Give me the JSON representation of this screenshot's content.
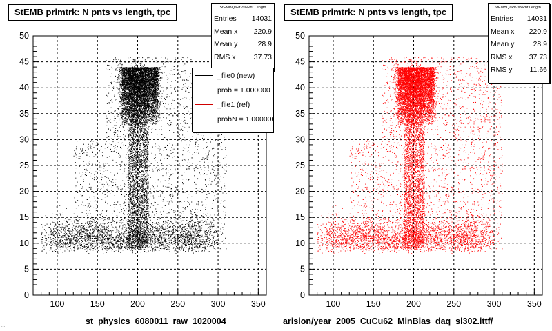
{
  "chart_data": [
    {
      "type": "scatter",
      "title": "StEMB primtrk: N pnts vs length, tpc",
      "xlabel": "st_physics_6080011_raw_1020004",
      "ylabel": "",
      "xlim": [
        70,
        360
      ],
      "ylim": [
        0,
        50
      ],
      "x_ticks": [
        100,
        150,
        200,
        250,
        300,
        350
      ],
      "y_ticks": [
        0,
        5,
        10,
        15,
        20,
        25,
        30,
        35,
        40,
        45,
        50
      ],
      "grid": true,
      "marker_color": "#000000",
      "stats": {
        "name": "StEMBQaPrVsNPnt.Length",
        "rows": [
          {
            "label": "Entries",
            "value": "14031"
          },
          {
            "label": "Mean x",
            "value": "220.9"
          },
          {
            "label": "Mean y",
            "value": "28.9"
          },
          {
            "label": "RMS x",
            "value": "37.73"
          }
        ]
      },
      "legend": {
        "placement": "top-right",
        "entries": [
          {
            "label": "_file0 (new)",
            "color": "#000000"
          },
          {
            "label": "prob = 1.000000",
            "color": "#000000"
          },
          {
            "label": "_file1 (ref)",
            "color": "#d00000"
          },
          {
            "label": "probN = 1.000000",
            "color": "#d00000"
          }
        ]
      },
      "series": [
        {
          "entries": 14031,
          "x_range": [
            80,
            320
          ],
          "y_range": [
            8,
            46
          ],
          "dense_region": {
            "x": [
              180,
              225
            ],
            "y": [
              33,
              44
            ]
          }
        }
      ]
    },
    {
      "type": "scatter",
      "title": "StEMB primtrk: N pnts vs length, tpc",
      "xlabel": "arision/year_2005_CuCu62_MinBias_daq_sl302.ittf/",
      "ylabel": "",
      "xlim": [
        70,
        360
      ],
      "ylim": [
        0,
        50
      ],
      "x_ticks": [
        100,
        150,
        200,
        250,
        300,
        350
      ],
      "y_ticks": [
        0,
        5,
        10,
        15,
        20,
        25,
        30,
        35,
        40,
        45,
        50
      ],
      "grid": true,
      "marker_color": "#ff0000",
      "stats": {
        "name": "StEMBQaPrVsNPnt.LengthT",
        "rows": [
          {
            "label": "Entries",
            "value": "14031"
          },
          {
            "label": "Mean x",
            "value": "220.9"
          },
          {
            "label": "Mean y",
            "value": "28.9"
          },
          {
            "label": "RMS x",
            "value": "37.73"
          },
          {
            "label": "RMS y",
            "value": "11.66"
          }
        ]
      },
      "series": [
        {
          "entries": 14031,
          "x_range": [
            80,
            320
          ],
          "y_range": [
            8,
            46
          ],
          "dense_region": {
            "x": [
              180,
              225
            ],
            "y": [
              33,
              44
            ]
          }
        }
      ]
    }
  ],
  "footer_fragment": "..."
}
